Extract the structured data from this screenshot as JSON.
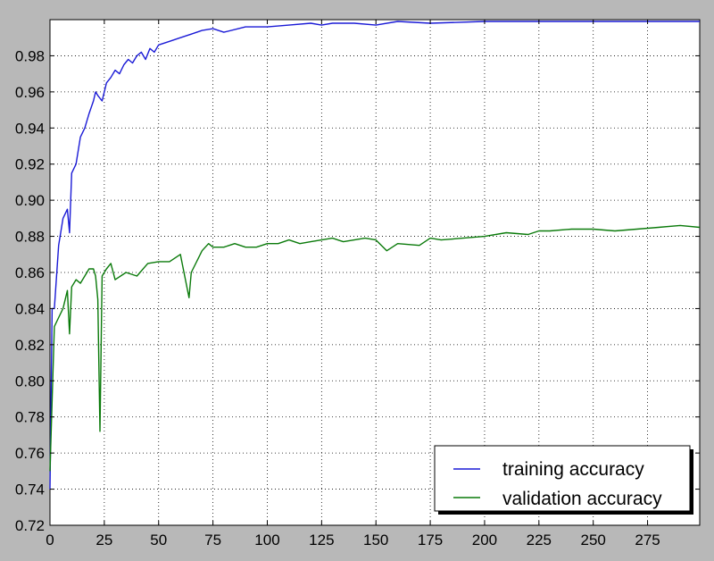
{
  "chart_data": {
    "type": "line",
    "title": "",
    "xlabel": "",
    "ylabel": "",
    "xlim": [
      0,
      299
    ],
    "ylim": [
      0.72,
      1.0
    ],
    "x_ticks": [
      "0",
      "25",
      "50",
      "75",
      "100",
      "125",
      "150",
      "175",
      "200",
      "225",
      "250",
      "275"
    ],
    "y_ticks": [
      "0.72",
      "0.74",
      "0.76",
      "0.78",
      "0.80",
      "0.82",
      "0.84",
      "0.86",
      "0.88",
      "0.90",
      "0.92",
      "0.94",
      "0.96",
      "0.98"
    ],
    "grid": true,
    "legend_position": "bottom-right",
    "series": [
      {
        "name": "training accuracy",
        "color": "#1a1ad6",
        "x": [
          0,
          1,
          2,
          4,
          6,
          8,
          9,
          10,
          12,
          14,
          16,
          18,
          20,
          21,
          22,
          24,
          26,
          28,
          30,
          32,
          34,
          36,
          38,
          40,
          42,
          44,
          46,
          48,
          50,
          55,
          60,
          65,
          70,
          75,
          80,
          90,
          100,
          110,
          120,
          125,
          130,
          140,
          150,
          160,
          175,
          200,
          225,
          250,
          275,
          299
        ],
        "y": [
          0.74,
          0.84,
          0.84,
          0.875,
          0.89,
          0.895,
          0.882,
          0.915,
          0.92,
          0.935,
          0.94,
          0.948,
          0.955,
          0.96,
          0.958,
          0.955,
          0.965,
          0.968,
          0.972,
          0.97,
          0.975,
          0.978,
          0.976,
          0.98,
          0.982,
          0.978,
          0.984,
          0.982,
          0.986,
          0.988,
          0.99,
          0.992,
          0.994,
          0.995,
          0.993,
          0.996,
          0.996,
          0.997,
          0.998,
          0.997,
          0.998,
          0.998,
          0.997,
          0.999,
          0.998,
          0.999,
          0.999,
          0.999,
          0.999,
          0.999
        ]
      },
      {
        "name": "validation accuracy",
        "color": "#0a7a0a",
        "x": [
          0,
          2,
          4,
          6,
          8,
          9,
          10,
          12,
          14,
          16,
          18,
          20,
          21,
          22,
          23,
          24,
          26,
          28,
          30,
          35,
          40,
          45,
          50,
          55,
          60,
          64,
          65,
          70,
          73,
          75,
          80,
          85,
          90,
          95,
          100,
          105,
          110,
          115,
          120,
          125,
          130,
          135,
          140,
          145,
          150,
          155,
          160,
          170,
          175,
          180,
          190,
          200,
          210,
          220,
          225,
          230,
          240,
          250,
          260,
          270,
          280,
          290,
          299
        ],
        "y": [
          0.75,
          0.83,
          0.835,
          0.84,
          0.85,
          0.826,
          0.852,
          0.856,
          0.854,
          0.858,
          0.862,
          0.862,
          0.858,
          0.845,
          0.772,
          0.858,
          0.862,
          0.865,
          0.856,
          0.86,
          0.858,
          0.865,
          0.866,
          0.866,
          0.87,
          0.846,
          0.86,
          0.872,
          0.876,
          0.874,
          0.874,
          0.876,
          0.874,
          0.874,
          0.876,
          0.876,
          0.878,
          0.876,
          0.877,
          0.878,
          0.879,
          0.877,
          0.878,
          0.879,
          0.878,
          0.872,
          0.876,
          0.875,
          0.879,
          0.878,
          0.879,
          0.88,
          0.882,
          0.881,
          0.883,
          0.883,
          0.884,
          0.884,
          0.883,
          0.884,
          0.885,
          0.886,
          0.885
        ]
      }
    ]
  }
}
